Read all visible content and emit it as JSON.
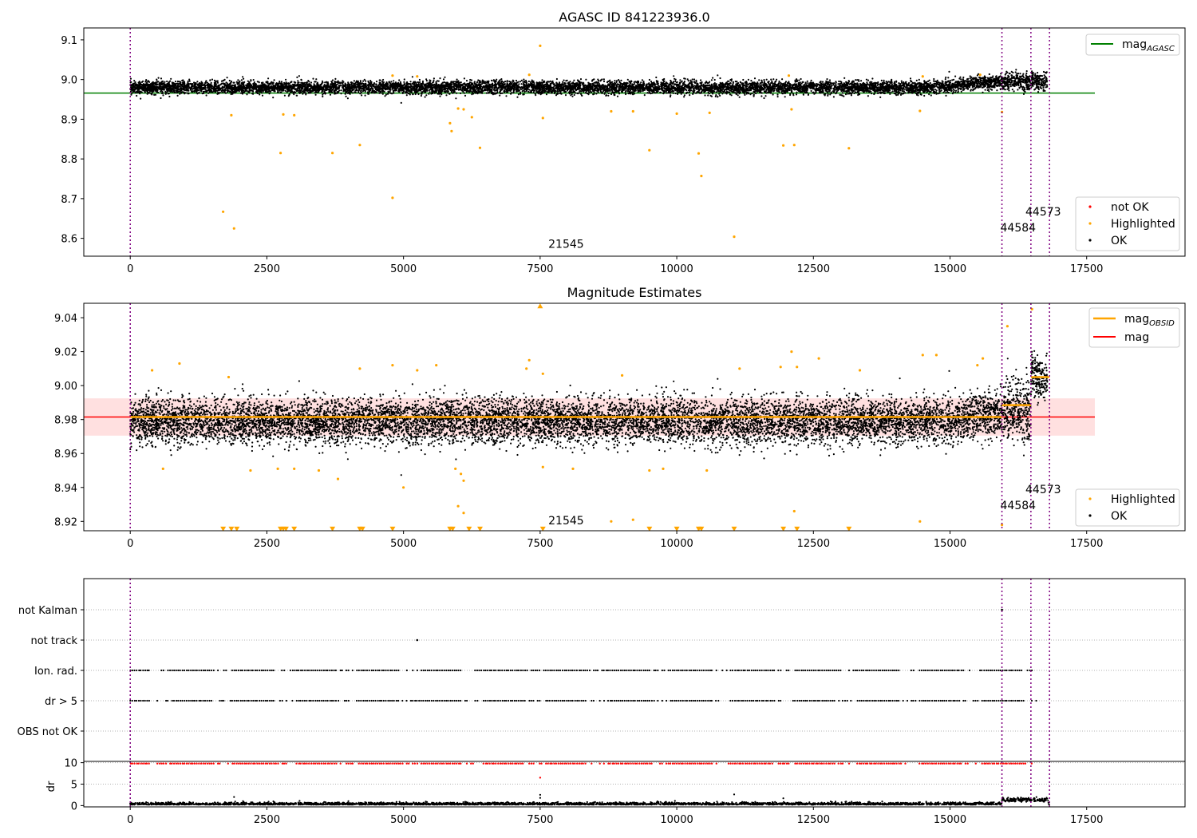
{
  "chart_data": [
    {
      "type": "scatter",
      "title": "AGASC ID 841223936.0",
      "xlabel": "",
      "ylabel": "",
      "xlim": [
        -850,
        19300
      ],
      "ylim": [
        8.555,
        9.13
      ],
      "x_ticks": [
        0,
        2500,
        5000,
        7500,
        10000,
        12500,
        15000,
        17500
      ],
      "y_ticks": [
        {
          "value": 8.6,
          "label": "8.6"
        },
        {
          "value": 8.7,
          "label": "8.7"
        },
        {
          "value": 8.8,
          "label": "8.8"
        },
        {
          "value": 8.9,
          "label": "8.9"
        },
        {
          "value": 9.0,
          "label": "9.0"
        },
        {
          "value": 9.1,
          "label": "9.1"
        }
      ],
      "dense_band": {
        "x_start": 0,
        "x_end": 16780,
        "center": 8.98,
        "halfwidth": 0.018,
        "late_center": 8.995
      },
      "reference_line": {
        "name_base": "mag",
        "name_sub": "AGASC",
        "value": 8.966,
        "x_start": -850,
        "x_end": 17650,
        "color": "#008000"
      },
      "series": [
        {
          "name": "not OK",
          "color": "#ff0000",
          "points": []
        },
        {
          "name": "Highlighted",
          "color": "#ffa500",
          "points": [
            [
              7500,
              9.085
            ],
            [
              1700,
              8.667
            ],
            [
              1900,
              8.625
            ],
            [
              1850,
              8.91
            ],
            [
              2750,
              8.815
            ],
            [
              2800,
              8.912
            ],
            [
              3000,
              8.91
            ],
            [
              3700,
              8.815
            ],
            [
              4200,
              8.835
            ],
            [
              4800,
              8.702
            ],
            [
              5850,
              8.89
            ],
            [
              5880,
              8.87
            ],
            [
              6000,
              8.927
            ],
            [
              6100,
              8.925
            ],
            [
              6400,
              8.828
            ],
            [
              6250,
              8.905
            ],
            [
              7550,
              8.903
            ],
            [
              8800,
              8.92
            ],
            [
              9200,
              8.92
            ],
            [
              9500,
              8.822
            ],
            [
              10000,
              8.914
            ],
            [
              10400,
              8.814
            ],
            [
              10450,
              8.757
            ],
            [
              10600,
              8.916
            ],
            [
              11050,
              8.604
            ],
            [
              11950,
              8.834
            ],
            [
              12150,
              8.835
            ],
            [
              13150,
              8.827
            ],
            [
              14450,
              8.921
            ],
            [
              12100,
              8.925
            ],
            [
              15950,
              8.918
            ],
            [
              4800,
              9.01
            ],
            [
              5250,
              9.008
            ],
            [
              7300,
              9.012
            ],
            [
              12050,
              9.01
            ],
            [
              14500,
              9.008
            ],
            [
              15550,
              9.012
            ]
          ]
        },
        {
          "name": "OK",
          "color": "#000000",
          "points": []
        }
      ],
      "obsid_lines": [
        0,
        15950,
        16480,
        16820
      ],
      "annotations": [
        {
          "text": "21545",
          "x": 7650,
          "y": 8.576
        },
        {
          "text": "44584",
          "x": 15920,
          "y": 8.617
        },
        {
          "text": "44573",
          "x": 16380,
          "y": 8.658
        }
      ],
      "legend_top": "top-right",
      "legend_bottom": "lower-right"
    },
    {
      "type": "scatter",
      "title": "Magnitude Estimates",
      "xlabel": "",
      "ylabel": "",
      "xlim": [
        -850,
        19300
      ],
      "ylim": [
        8.9145,
        9.0485
      ],
      "x_ticks": [
        0,
        2500,
        5000,
        7500,
        10000,
        12500,
        15000,
        17500
      ],
      "y_ticks": [
        {
          "value": 8.92,
          "label": "8.92"
        },
        {
          "value": 8.94,
          "label": "8.94"
        },
        {
          "value": 8.96,
          "label": "8.96"
        },
        {
          "value": 8.98,
          "label": "8.98"
        },
        {
          "value": 9.0,
          "label": "9.00"
        },
        {
          "value": 9.02,
          "label": "9.02"
        },
        {
          "value": 9.04,
          "label": "9.04"
        }
      ],
      "dense_band": {
        "x_start": 0,
        "x_end": 16780,
        "center": 8.979,
        "halfwidth": 0.012
      },
      "mag_line": {
        "name": "mag",
        "value": 8.9815,
        "x_start": -850,
        "x_end": 17650,
        "band": [
          8.9705,
          8.9925
        ],
        "color": "#ff0000"
      },
      "obsid_mag": {
        "name_base": "mag",
        "name_sub": "OBSID",
        "color": "#ffa500",
        "segments": [
          {
            "x_start": 0,
            "x_end": 15950,
            "value": 8.9815
          },
          {
            "x_start": 15950,
            "x_end": 16480,
            "value": 8.9885
          },
          {
            "x_start": 16480,
            "x_end": 16820,
            "value": 9.005
          }
        ]
      },
      "series": [
        {
          "name": "Highlighted",
          "color": "#ffa500",
          "points": [
            [
              400,
              9.009
            ],
            [
              900,
              9.013
            ],
            [
              1800,
              9.005
            ],
            [
              4200,
              9.01
            ],
            [
              4800,
              9.012
            ],
            [
              5250,
              9.009
            ],
            [
              5600,
              9.012
            ],
            [
              7300,
              9.015
            ],
            [
              7250,
              9.01
            ],
            [
              7550,
              9.007
            ],
            [
              9000,
              9.006
            ],
            [
              11150,
              9.01
            ],
            [
              11900,
              9.011
            ],
            [
              12100,
              9.02
            ],
            [
              12200,
              9.011
            ],
            [
              12600,
              9.016
            ],
            [
              13350,
              9.009
            ],
            [
              14500,
              9.018
            ],
            [
              14750,
              9.018
            ],
            [
              15500,
              9.012
            ],
            [
              15600,
              9.016
            ],
            [
              16050,
              9.035
            ],
            [
              16500,
              9.045
            ],
            [
              600,
              8.951
            ],
            [
              2200,
              8.95
            ],
            [
              2700,
              8.951
            ],
            [
              3000,
              8.951
            ],
            [
              3450,
              8.95
            ],
            [
              3800,
              8.945
            ],
            [
              5000,
              8.94
            ],
            [
              5950,
              8.951
            ],
            [
              6050,
              8.948
            ],
            [
              6100,
              8.944
            ],
            [
              7550,
              8.952
            ],
            [
              8100,
              8.951
            ],
            [
              9500,
              8.95
            ],
            [
              9750,
              8.951
            ],
            [
              10550,
              8.95
            ],
            [
              6000,
              8.929
            ],
            [
              6100,
              8.925
            ],
            [
              8800,
              8.92
            ],
            [
              9200,
              8.921
            ],
            [
              12150,
              8.926
            ],
            [
              14450,
              8.92
            ],
            [
              15950,
              8.918
            ]
          ]
        },
        {
          "name": "OK",
          "color": "#000000",
          "points": []
        }
      ],
      "clipped_markers": {
        "color": "#ffa500",
        "below_y": 8.9155,
        "below_x": [
          1700,
          1850,
          1950,
          2750,
          2800,
          2850,
          3000,
          3700,
          4200,
          4250,
          4800,
          5850,
          5900,
          6200,
          6400,
          7550,
          9500,
          10000,
          10400,
          10450,
          11050,
          11950,
          12200,
          13150
        ],
        "above_y": 9.047,
        "above_x": [
          7500
        ]
      },
      "obsid_lines": [
        0,
        15950,
        16480,
        16820
      ],
      "annotations": [
        {
          "text": "21545",
          "x": 7650,
          "y": 8.9183
        },
        {
          "text": "44584",
          "x": 15920,
          "y": 8.9273
        },
        {
          "text": "44573",
          "x": 16380,
          "y": 8.9365
        }
      ],
      "legend_top": "top-right",
      "legend_bottom": "lower-right"
    },
    {
      "type": "scatter",
      "title": "",
      "xlabel": "",
      "ylabel": "",
      "xlim": [
        -850,
        19300
      ],
      "categories": [
        "not Kalman",
        "not track",
        "Ion. rad.",
        "dr > 5",
        "OBS not OK"
      ],
      "flag_dash_x_end": 16600,
      "flag_rows": {
        "not Kalman": [
          15950
        ],
        "not track": [
          5250
        ],
        "Ion. rad.": "periodic",
        "dr > 5": "periodic",
        "OBS not OK": []
      },
      "obsid_lines": [
        0,
        15950,
        16480,
        16820
      ]
    },
    {
      "type": "scatter",
      "title": "",
      "xlabel": "",
      "ylabel": "dr",
      "xlim": [
        -850,
        19300
      ],
      "ylim": [
        -0.3,
        10.3
      ],
      "x_ticks": [
        0,
        2500,
        5000,
        7500,
        10000,
        12500,
        15000,
        17500
      ],
      "y_ticks": [
        {
          "value": 0,
          "label": "0"
        },
        {
          "value": 5,
          "label": "5"
        },
        {
          "value": 10,
          "label": "10"
        }
      ],
      "series": [
        {
          "name": "dr",
          "color": "#000000",
          "base_value": 0.5,
          "outliers": [
            [
              1900,
              2.0
            ],
            [
              7500,
              2.5
            ],
            [
              11050,
              2.6
            ],
            [
              11950,
              1.7
            ],
            [
              7500,
              1.8
            ],
            [
              13200,
              0.9
            ]
          ]
        },
        {
          "name": "dr clipped",
          "color": "#ff0000",
          "value": 9.8,
          "outliers": [
            [
              7500,
              6.5
            ]
          ]
        }
      ],
      "obsid_lines": [
        0,
        15950,
        16480,
        16820
      ]
    }
  ]
}
